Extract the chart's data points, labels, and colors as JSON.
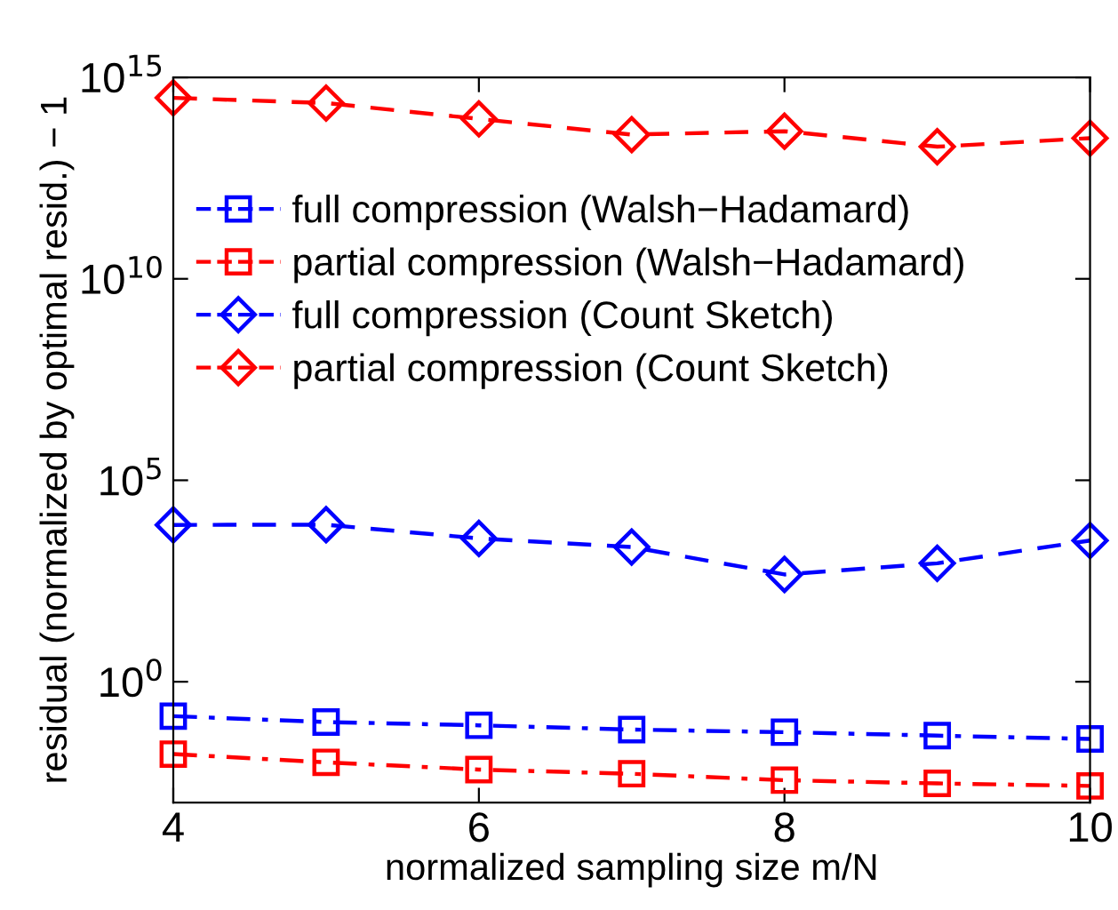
{
  "chart_data": {
    "type": "line",
    "xlabel": "normalized sampling size m/N",
    "ylabel": "residual (normalized by optimal resid.) − 1",
    "x": [
      4,
      5,
      6,
      7,
      8,
      9,
      10
    ],
    "xlim": [
      4,
      10
    ],
    "xticks": [
      4,
      6,
      8,
      10
    ],
    "log": "y",
    "ylim": [
      0.001,
      1000000000000000.0
    ],
    "yticks": [
      {
        "value": 1,
        "label": "10$^{0}$"
      },
      {
        "value": 100000,
        "label": "10$^{5}$"
      },
      {
        "value": 10000000000.0,
        "label": "10$^{10}$"
      },
      {
        "value": 1000000000000000.0,
        "label": "10$^{15}$"
      }
    ],
    "grid": false,
    "legend": "top left",
    "series": [
      {
        "name": "full compression (Walsh−Hadamard)",
        "color": "#0000ff",
        "marker": "square",
        "line_style": "dashdot",
        "values": [
          0.14,
          0.1,
          0.083,
          0.065,
          0.056,
          0.046,
          0.038
        ]
      },
      {
        "name": "partial compression (Walsh−Hadamard)",
        "color": "#ff0000",
        "marker": "square",
        "line_style": "dashdot",
        "values": [
          0.016,
          0.01,
          0.0066,
          0.0052,
          0.0036,
          0.003,
          0.0026
        ]
      },
      {
        "name": "full compression (Count Sketch)",
        "color": "#0000ff",
        "marker": "diamond",
        "line_style": "dashed",
        "values": [
          7800,
          7900,
          3600,
          2200,
          460,
          870,
          3200
        ]
      },
      {
        "name": "partial compression (Count Sketch)",
        "color": "#ff0000",
        "marker": "diamond",
        "line_style": "dashed",
        "values": [
          310000000000000.0,
          230000000000000.0,
          93000000000000.0,
          38000000000000.0,
          46000000000000.0,
          19000000000000.0,
          31000000000000.0
        ]
      }
    ]
  }
}
